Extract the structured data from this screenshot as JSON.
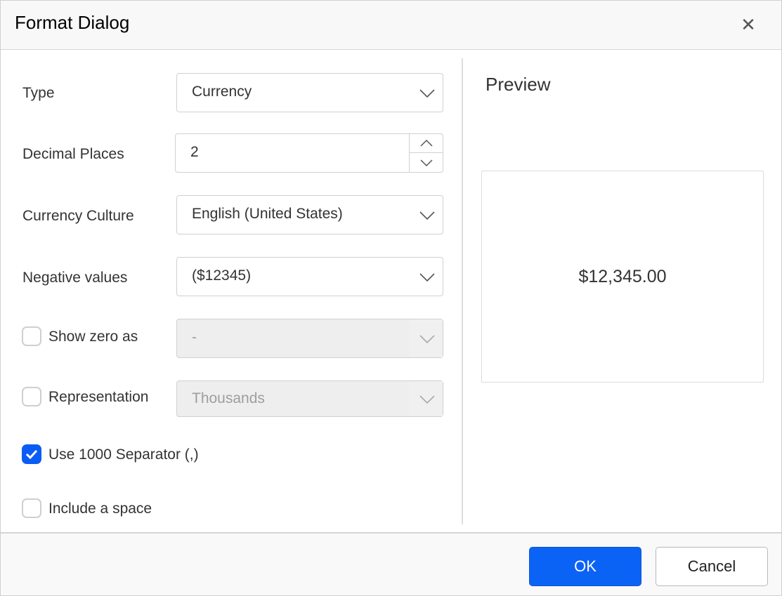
{
  "dialog": {
    "title": "Format Dialog",
    "close_icon": "close-icon"
  },
  "form": {
    "type": {
      "label": "Type",
      "value": "Currency"
    },
    "decimal_places": {
      "label": "Decimal Places",
      "value": "2"
    },
    "currency_culture": {
      "label": "Currency Culture",
      "value": "English (United States)"
    },
    "negative_values": {
      "label": "Negative values",
      "value": "($12345)"
    },
    "show_zero_as": {
      "label": "Show zero as",
      "value": "-",
      "checked": false,
      "disabled": true
    },
    "representation": {
      "label": "Representation",
      "value": "Thousands",
      "checked": false,
      "disabled": true
    },
    "use_separator": {
      "label": "Use 1000 Separator (,)",
      "checked": true
    },
    "include_space": {
      "label": "Include a space",
      "checked": false
    }
  },
  "preview": {
    "title": "Preview",
    "value": "$12,345.00"
  },
  "footer": {
    "ok_label": "OK",
    "cancel_label": "Cancel"
  },
  "colors": {
    "accent": "#0b63f6"
  }
}
